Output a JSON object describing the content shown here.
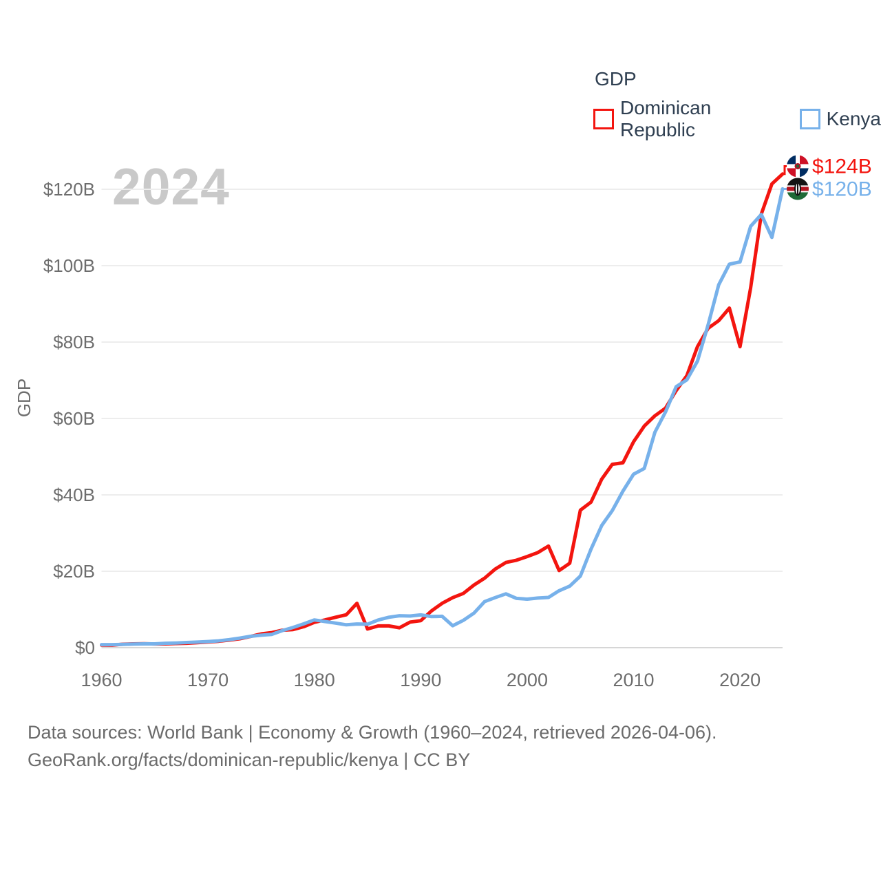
{
  "legend": {
    "title": "GDP",
    "items": [
      {
        "label": "Dominican Republic",
        "color": "#f3150f"
      },
      {
        "label": "Kenya",
        "color": "#77b1ea"
      }
    ]
  },
  "watermark": "2024",
  "source": {
    "line1": "Data sources: World Bank | Economy & Growth (1960–2024, retrieved 2026-04-06).",
    "line2": "GeoRank.org/facts/dominican-republic/kenya | CC BY"
  },
  "chart_data": {
    "type": "line",
    "title": "GDP",
    "xlabel": "",
    "ylabel": "GDP",
    "ylim": [
      0,
      124
    ],
    "grid": "horizontal",
    "legend_position": "top-right",
    "x_ticks": [
      1960,
      1970,
      1980,
      1990,
      2000,
      2010,
      2020
    ],
    "y_ticks": [
      {
        "value": 0,
        "label": "$0"
      },
      {
        "value": 20,
        "label": "$20B"
      },
      {
        "value": 40,
        "label": "$40B"
      },
      {
        "value": 60,
        "label": "$60B"
      },
      {
        "value": 80,
        "label": "$80B"
      },
      {
        "value": 100,
        "label": "$100B"
      },
      {
        "value": 120,
        "label": "$120B"
      }
    ],
    "years": [
      1960,
      1961,
      1962,
      1963,
      1964,
      1965,
      1966,
      1967,
      1968,
      1969,
      1970,
      1971,
      1972,
      1973,
      1974,
      1975,
      1976,
      1977,
      1978,
      1979,
      1980,
      1981,
      1982,
      1983,
      1984,
      1985,
      1986,
      1987,
      1988,
      1989,
      1990,
      1991,
      1992,
      1993,
      1994,
      1995,
      1996,
      1997,
      1998,
      1999,
      2000,
      2001,
      2002,
      2003,
      2004,
      2005,
      2006,
      2007,
      2008,
      2009,
      2010,
      2011,
      2012,
      2013,
      2014,
      2015,
      2016,
      2017,
      2018,
      2019,
      2020,
      2021,
      2022,
      2023,
      2024
    ],
    "series": [
      {
        "name": "Dominican Republic",
        "color": "#f3150f",
        "flag": "dominican-republic",
        "end_label": "$124B",
        "unit": "billion USD",
        "values": [
          0.67,
          0.64,
          0.9,
          1.0,
          1.05,
          0.97,
          0.99,
          1.08,
          1.16,
          1.31,
          1.49,
          1.67,
          1.99,
          2.35,
          2.93,
          3.6,
          3.95,
          4.58,
          4.73,
          5.5,
          6.63,
          7.27,
          7.96,
          8.62,
          11.6,
          4.9,
          5.7,
          5.7,
          5.2,
          6.7,
          7.07,
          9.6,
          11.6,
          13.1,
          14.2,
          16.4,
          18.2,
          20.6,
          22.3,
          22.9,
          23.86,
          24.9,
          26.6,
          20.2,
          22.1,
          36.0,
          38.1,
          44.1,
          48.0,
          48.4,
          53.9,
          58.0,
          60.7,
          62.7,
          67.3,
          71.2,
          78.8,
          83.6,
          85.6,
          88.9,
          78.8,
          94.2,
          113.5,
          121.4,
          124.0
        ]
      },
      {
        "name": "Kenya",
        "color": "#77b1ea",
        "flag": "kenya",
        "end_label": "$120B",
        "unit": "billion USD",
        "values": [
          0.79,
          0.79,
          0.87,
          0.93,
          1.0,
          1.0,
          1.16,
          1.23,
          1.35,
          1.46,
          1.6,
          1.78,
          2.11,
          2.5,
          2.97,
          3.26,
          3.47,
          4.49,
          5.3,
          6.23,
          7.27,
          6.85,
          6.43,
          5.98,
          6.19,
          6.14,
          7.24,
          7.97,
          8.36,
          8.28,
          8.57,
          8.15,
          8.21,
          5.75,
          7.15,
          9.05,
          12.05,
          13.12,
          14.09,
          12.9,
          12.71,
          12.99,
          13.15,
          14.9,
          16.1,
          18.74,
          25.8,
          31.96,
          35.9,
          41.0,
          45.4,
          46.9,
          56.4,
          61.7,
          68.3,
          70.1,
          75.0,
          84.5,
          95.0,
          100.4,
          101.0,
          110.3,
          113.4,
          107.4,
          120.1
        ]
      }
    ]
  }
}
